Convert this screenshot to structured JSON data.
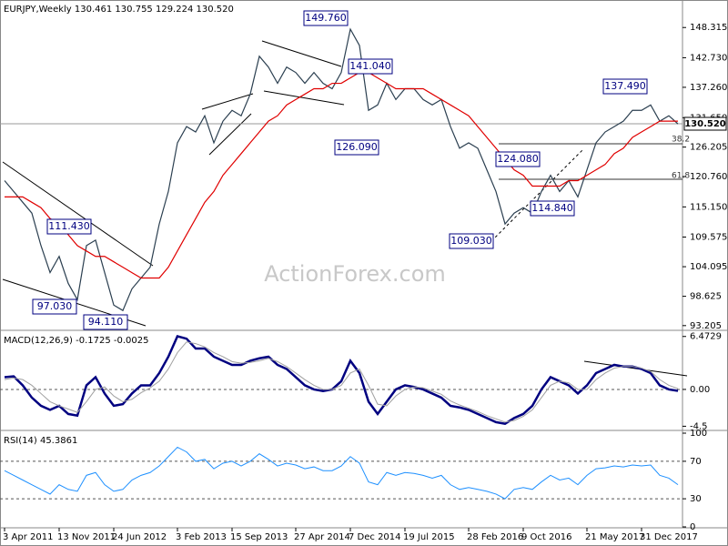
{
  "chart_data": [
    {
      "type": "line",
      "title": "EURJPY,Weekly  130.461 130.755 129.224 130.520",
      "ylim": [
        92.5,
        153.4
      ],
      "yticks": [
        {
          "value": 93.205,
          "label": "93.205"
        },
        {
          "value": 98.625,
          "label": "98.625"
        },
        {
          "value": 104.095,
          "label": "104.095"
        },
        {
          "value": 109.575,
          "label": "109.575"
        },
        {
          "value": 115.15,
          "label": "115.150"
        },
        {
          "value": 120.76,
          "label": "120.760"
        },
        {
          "value": 126.205,
          "label": "126.205"
        },
        {
          "value": 131.65,
          "label": "131.650"
        },
        {
          "value": 137.26,
          "label": "137.260"
        },
        {
          "value": 142.73,
          "label": "142.730"
        },
        {
          "value": 148.315,
          "label": "148.315"
        }
      ],
      "series": [
        {
          "color": "#2b3f50",
          "values": [
            120,
            118,
            116,
            114,
            108,
            103,
            106,
            101,
            98,
            108,
            109,
            103,
            97,
            96,
            100,
            102,
            104,
            112,
            118,
            127,
            130,
            129,
            132,
            127,
            131,
            133,
            132,
            136,
            143,
            141,
            138,
            141,
            140,
            138,
            140,
            138,
            137,
            140,
            148,
            145,
            133,
            134,
            138,
            135,
            137,
            137,
            135,
            134,
            135,
            130,
            126,
            127,
            126,
            122,
            118,
            112,
            114,
            115,
            114,
            118,
            121,
            118,
            120,
            117,
            122,
            127,
            129,
            130,
            131,
            133,
            133,
            134,
            131,
            132,
            130.5
          ]
        },
        {
          "color": "#e00000",
          "values": [
            117,
            117,
            117,
            116,
            115,
            113,
            112,
            110,
            108,
            107,
            106,
            106,
            105,
            104,
            103,
            102,
            102,
            102,
            104,
            107,
            110,
            113,
            116,
            118,
            121,
            123,
            125,
            127,
            129,
            131,
            132,
            134,
            135,
            136,
            137,
            137,
            138,
            138,
            139,
            140,
            140,
            139,
            138,
            137,
            137,
            137,
            137,
            136,
            135,
            134,
            133,
            132,
            130,
            128,
            126,
            124,
            122,
            121,
            119,
            119,
            119,
            119,
            120,
            120,
            121,
            122,
            123,
            125,
            126,
            128,
            129,
            130,
            131,
            131,
            131
          ]
        }
      ],
      "last": {
        "value": 130.52,
        "label": "130.520"
      },
      "annotations": [
        "149.760",
        "141.040",
        "137.490",
        "126.090",
        "124.080",
        "111.430",
        "114.840",
        "109.030",
        "97.030",
        "94.110",
        "38.2",
        "61.8"
      ],
      "watermark": "ActionForex.com"
    },
    {
      "type": "line",
      "title": "MACD(12,26,9) -0.1725 -0.0025",
      "ylim": [
        -4.9,
        7.0
      ],
      "yticks": [
        6.4729,
        {
          "value": 0,
          "label": "0.00"
        },
        -4.5
      ],
      "level_lines": [
        0
      ],
      "series": [
        {
          "color": "#000080",
          "width": 2.5,
          "values": [
            1.5,
            1.6,
            0.5,
            -1,
            -2,
            -2.5,
            -2,
            -3,
            -3.2,
            0.5,
            1.5,
            -0.5,
            -2,
            -1.8,
            -0.5,
            0.5,
            0.5,
            2,
            4,
            6.5,
            6.2,
            5,
            5,
            4,
            3.5,
            3,
            3,
            3.5,
            3.8,
            4,
            3,
            2.5,
            1.5,
            0.5,
            0,
            -0.2,
            0,
            1,
            3.5,
            2,
            -1.5,
            -3,
            -1.5,
            0,
            0.5,
            0.3,
            0,
            -0.5,
            -1,
            -2,
            -2.2,
            -2.5,
            -3,
            -3.5,
            -4,
            -4.2,
            -3.5,
            -3,
            -2,
            0,
            1.5,
            1,
            0.5,
            -0.5,
            0.5,
            2,
            2.5,
            3,
            2.8,
            2.8,
            2.5,
            2,
            0.5,
            0,
            -0.17
          ]
        },
        {
          "color": "#a0a0a0",
          "width": 1,
          "values": [
            1.2,
            1.4,
            1.2,
            0.5,
            -0.5,
            -1.5,
            -2,
            -2.4,
            -2.8,
            -1.5,
            0,
            0.3,
            -0.8,
            -1.5,
            -1.2,
            -0.4,
            0.2,
            1,
            2.5,
            4.5,
            5.8,
            5.6,
            5.2,
            4.5,
            4,
            3.4,
            3.2,
            3.3,
            3.5,
            3.8,
            3.4,
            2.8,
            2,
            1.2,
            0.5,
            0,
            0,
            0.5,
            2,
            2.5,
            0.5,
            -1.8,
            -2,
            -0.8,
            0,
            0.3,
            0.2,
            -0.2,
            -0.6,
            -1.4,
            -1.9,
            -2.3,
            -2.7,
            -3.2,
            -3.6,
            -4,
            -3.8,
            -3.3,
            -2.5,
            -1,
            0.5,
            1,
            0.8,
            0,
            0,
            1.2,
            2,
            2.6,
            2.8,
            2.8,
            2.6,
            2.2,
            1.2,
            0.5,
            0.1
          ]
        }
      ]
    },
    {
      "type": "line",
      "title": "RSI(14) 45.3861",
      "ylim": [
        0,
        100
      ],
      "yticks": [
        100,
        70,
        30,
        0
      ],
      "level_lines": [
        70,
        30
      ],
      "categories": [
        "3 Apr 2011",
        null,
        null,
        null,
        null,
        null,
        "13 Nov 2011",
        null,
        null,
        null,
        null,
        null,
        "24 Jun 2012",
        null,
        null,
        null,
        null,
        null,
        null,
        "3 Feb 2013",
        null,
        null,
        null,
        null,
        null,
        "15 Sep 2013",
        null,
        null,
        null,
        null,
        null,
        null,
        "27 Apr 2014",
        null,
        null,
        null,
        null,
        null,
        "7 Dec 2014",
        null,
        null,
        null,
        null,
        null,
        "19 Jul 2015",
        null,
        null,
        null,
        null,
        null,
        null,
        "28 Feb 2016",
        null,
        null,
        null,
        null,
        null,
        "9 Oct 2016",
        null,
        null,
        null,
        null,
        null,
        null,
        "21 May 2017",
        null,
        null,
        null,
        null,
        null,
        "31 Dec 2017",
        null,
        null,
        null,
        null
      ],
      "series": [
        {
          "color": "#1e90ff",
          "width": 1,
          "values": [
            60,
            55,
            50,
            45,
            40,
            35,
            45,
            40,
            38,
            55,
            58,
            45,
            38,
            40,
            50,
            55,
            58,
            65,
            75,
            85,
            80,
            70,
            72,
            62,
            68,
            70,
            65,
            70,
            78,
            72,
            65,
            68,
            66,
            62,
            64,
            60,
            60,
            65,
            75,
            68,
            48,
            45,
            58,
            55,
            58,
            57,
            55,
            52,
            55,
            45,
            40,
            42,
            40,
            38,
            35,
            30,
            40,
            42,
            40,
            48,
            55,
            50,
            52,
            45,
            55,
            62,
            63,
            65,
            64,
            66,
            65,
            66,
            55,
            52,
            45
          ]
        }
      ]
    }
  ]
}
